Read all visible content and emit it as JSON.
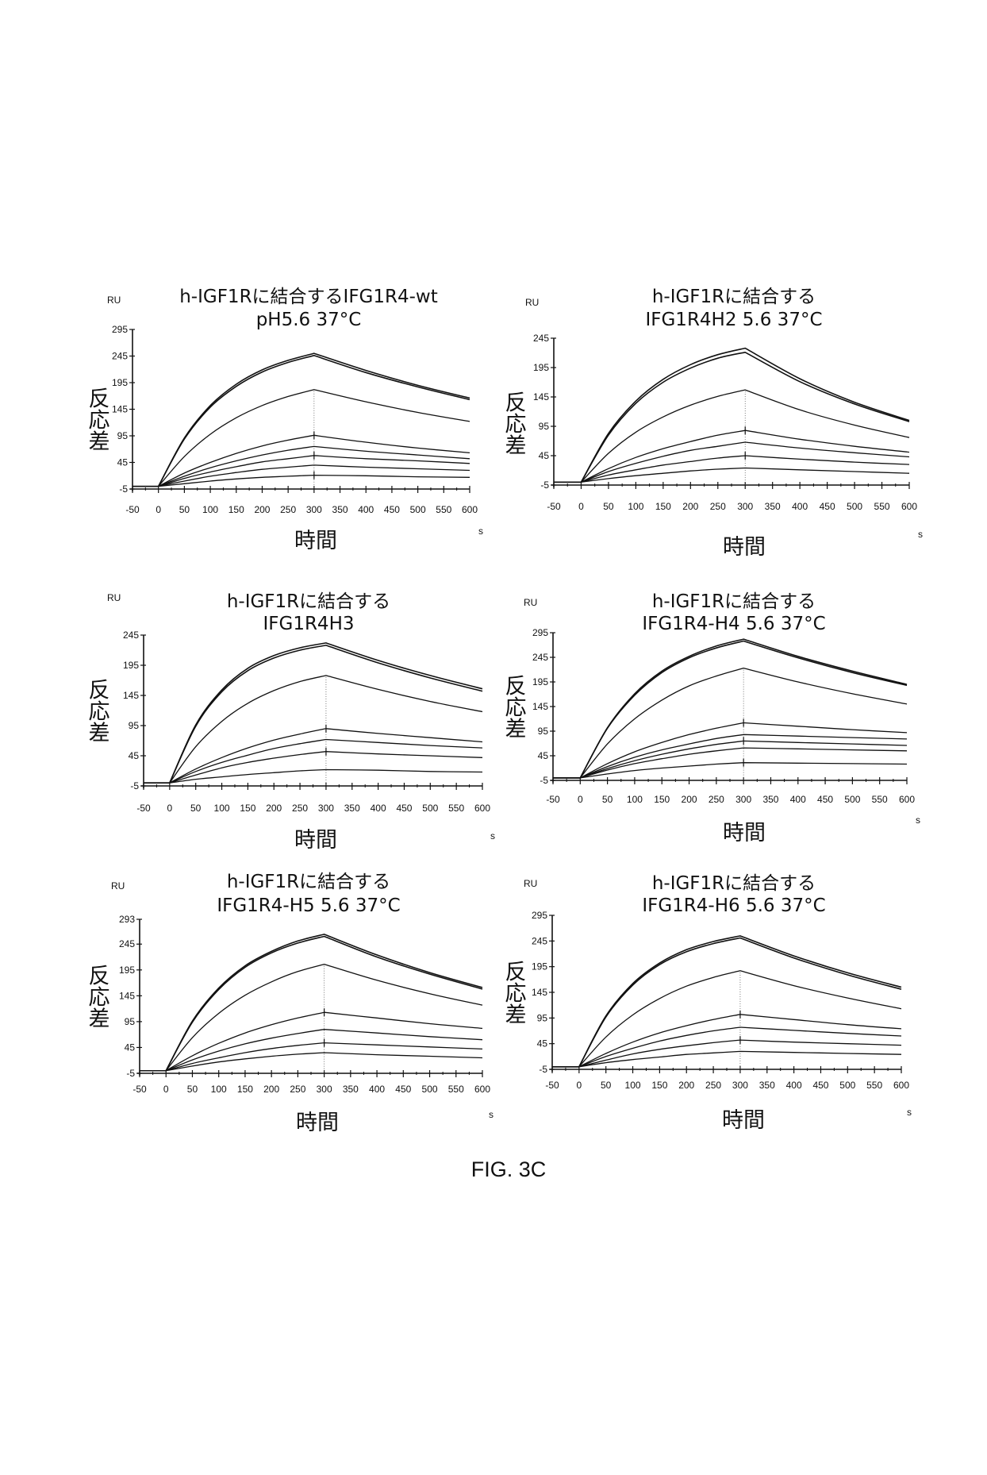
{
  "figure_label": "FIG. 3C",
  "chart_data": [
    {
      "type": "line",
      "title": [
        "h-IGF1Rに結合するIFG1R4-wt",
        "pH5.6  37°C"
      ],
      "unit_label": "RU",
      "ylabel": "反応差",
      "xlabel": "時間",
      "x_unit": "s",
      "xlim": [
        -50,
        600
      ],
      "ylim": [
        -5,
        295
      ],
      "xticks": [
        "-50",
        "0",
        "50",
        "100",
        "150",
        "200",
        "250",
        "300",
        "350",
        "400",
        "450",
        "500",
        "550",
        "600"
      ],
      "yticks": [
        "-5",
        "45",
        "95",
        "145",
        "195",
        "245",
        "295"
      ],
      "x": [
        -50,
        0,
        50,
        100,
        150,
        200,
        250,
        300,
        400,
        500,
        600
      ],
      "series": [
        {
          "values": [
            0,
            0,
            91,
            152,
            192,
            219,
            237,
            250,
            218,
            190,
            166
          ]
        },
        {
          "values": [
            0,
            0,
            89,
            149,
            188,
            215,
            233,
            246,
            214,
            187,
            163
          ]
        },
        {
          "values": [
            0,
            0,
            56,
            98,
            129,
            152,
            169,
            182,
            159,
            139,
            122
          ]
        },
        {
          "values": [
            0,
            0,
            25,
            45,
            62,
            76,
            87,
            96,
            83,
            72,
            63
          ]
        },
        {
          "values": [
            0,
            0,
            19,
            35,
            48,
            59,
            68,
            75,
            66,
            59,
            52
          ]
        },
        {
          "values": [
            0,
            0,
            15,
            27,
            37,
            46,
            52,
            58,
            52,
            48,
            43
          ]
        },
        {
          "values": [
            0,
            0,
            10,
            19,
            26,
            32,
            36,
            40,
            36,
            33,
            30
          ]
        },
        {
          "values": [
            0,
            0,
            5,
            10,
            14,
            17,
            19,
            21,
            20,
            18,
            17
          ]
        }
      ]
    },
    {
      "type": "line",
      "title": [
        "h-IGF1Rに結合する",
        "IFG1R4H2  5.6  37°C"
      ],
      "unit_label": "RU",
      "ylabel": "反応差",
      "xlabel": "時間",
      "x_unit": "s",
      "xlim": [
        -50,
        600
      ],
      "ylim": [
        -5,
        245
      ],
      "xticks": [
        "-50",
        "0",
        "50",
        "100",
        "150",
        "200",
        "250",
        "300",
        "350",
        "400",
        "450",
        "500",
        "550",
        "600"
      ],
      "yticks": [
        "-5",
        "45",
        "95",
        "145",
        "195",
        "245"
      ],
      "x": [
        -50,
        0,
        50,
        100,
        150,
        200,
        250,
        300,
        400,
        500,
        600
      ],
      "series": [
        {
          "values": [
            0,
            0,
            83,
            138,
            175,
            200,
            217,
            228,
            176,
            136,
            105
          ]
        },
        {
          "values": [
            0,
            0,
            80,
            134,
            170,
            194,
            211,
            221,
            171,
            133,
            103
          ]
        },
        {
          "values": [
            0,
            0,
            49,
            85,
            111,
            131,
            146,
            157,
            123,
            97,
            76
          ]
        },
        {
          "values": [
            0,
            0,
            23,
            42,
            57,
            69,
            80,
            88,
            73,
            61,
            51
          ]
        },
        {
          "values": [
            0,
            0,
            18,
            32,
            44,
            54,
            61,
            68,
            58,
            50,
            43
          ]
        },
        {
          "values": [
            0,
            0,
            12,
            21,
            29,
            35,
            41,
            45,
            39,
            34,
            30
          ]
        },
        {
          "values": [
            0,
            0,
            6,
            11,
            15,
            19,
            22,
            24,
            21,
            18,
            15
          ]
        }
      ]
    },
    {
      "type": "line",
      "title": [
        "h-IGF1Rに結合する",
        "IFG1R4H3"
      ],
      "unit_label": "RU",
      "ylabel": "反応差",
      "xlabel": "時間",
      "x_unit": "s",
      "xlim": [
        -50,
        600
      ],
      "ylim": [
        -5,
        245
      ],
      "xticks": [
        "-50",
        "0",
        "50",
        "100",
        "150",
        "200",
        "250",
        "300",
        "350",
        "400",
        "450",
        "500",
        "550",
        "600"
      ],
      "yticks": [
        "-5",
        "45",
        "95",
        "145",
        "195",
        "245"
      ],
      "x": [
        -50,
        0,
        50,
        100,
        150,
        200,
        250,
        300,
        400,
        500,
        600
      ],
      "series": [
        {
          "values": [
            0,
            0,
            96,
            154,
            190,
            211,
            224,
            232,
            203,
            178,
            156
          ]
        },
        {
          "values": [
            0,
            0,
            94,
            151,
            186,
            207,
            220,
            228,
            199,
            174,
            152
          ]
        },
        {
          "values": [
            0,
            0,
            60,
            102,
            132,
            153,
            168,
            178,
            155,
            135,
            118
          ]
        },
        {
          "values": [
            0,
            0,
            23,
            42,
            58,
            71,
            81,
            90,
            82,
            75,
            68
          ]
        },
        {
          "values": [
            0,
            0,
            19,
            34,
            46,
            57,
            65,
            72,
            67,
            62,
            58
          ]
        },
        {
          "values": [
            0,
            0,
            13,
            25,
            34,
            41,
            47,
            52,
            48,
            45,
            42
          ]
        },
        {
          "values": [
            0,
            0,
            6,
            10,
            14,
            17,
            20,
            22,
            21,
            19,
            18
          ]
        }
      ]
    },
    {
      "type": "line",
      "title": [
        "h-IGF1Rに結合する",
        "IFG1R4-H4  5.6  37°C"
      ],
      "unit_label": "RU",
      "ylabel": "反応差",
      "xlabel": "時間",
      "x_unit": "s",
      "xlim": [
        -50,
        600
      ],
      "ylim": [
        -5,
        295
      ],
      "xticks": [
        "-50",
        "0",
        "50",
        "100",
        "150",
        "200",
        "250",
        "300",
        "350",
        "400",
        "450",
        "500",
        "550",
        "600"
      ],
      "yticks": [
        "-5",
        "45",
        "95",
        "145",
        "195",
        "245",
        "295"
      ],
      "x": [
        -50,
        0,
        50,
        100,
        150,
        200,
        250,
        300,
        400,
        500,
        600
      ],
      "series": [
        {
          "values": [
            0,
            0,
            102,
            171,
            217,
            247,
            268,
            282,
            247,
            217,
            190
          ]
        },
        {
          "values": [
            0,
            0,
            101,
            168,
            214,
            244,
            264,
            278,
            244,
            214,
            188
          ]
        },
        {
          "values": [
            0,
            0,
            69,
            120,
            158,
            187,
            207,
            223,
            195,
            171,
            150
          ]
        },
        {
          "values": [
            0,
            0,
            29,
            53,
            72,
            88,
            101,
            112,
            105,
            98,
            92
          ]
        },
        {
          "values": [
            0,
            0,
            23,
            42,
            57,
            69,
            80,
            88,
            85,
            82,
            79
          ]
        },
        {
          "values": [
            0,
            0,
            19,
            35,
            48,
            59,
            68,
            75,
            72,
            69,
            66
          ]
        },
        {
          "values": [
            0,
            0,
            16,
            29,
            39,
            48,
            55,
            61,
            59,
            57,
            55
          ]
        },
        {
          "values": [
            0,
            0,
            8,
            15,
            20,
            24,
            28,
            31,
            30,
            29,
            28
          ]
        }
      ]
    },
    {
      "type": "line",
      "title": [
        "h-IGF1Rに結合する",
        "IFG1R4-H5  5.6  37°C"
      ],
      "unit_label": "RU",
      "ylabel": "反応差",
      "xlabel": "時間",
      "x_unit": "s",
      "xlim": [
        -50,
        600
      ],
      "ylim": [
        -5,
        293
      ],
      "xticks": [
        "-50",
        "0",
        "50",
        "100",
        "150",
        "200",
        "250",
        "300",
        "350",
        "400",
        "450",
        "500",
        "550",
        "600"
      ],
      "yticks": [
        "-5",
        "45",
        "95",
        "145",
        "195",
        "245",
        "293"
      ],
      "x": [
        -50,
        0,
        50,
        100,
        150,
        200,
        250,
        300,
        400,
        500,
        600
      ],
      "series": [
        {
          "values": [
            0,
            0,
            96,
            160,
            203,
            231,
            251,
            264,
            224,
            190,
            161
          ]
        },
        {
          "values": [
            0,
            0,
            94,
            157,
            200,
            228,
            247,
            260,
            220,
            187,
            158
          ]
        },
        {
          "values": [
            0,
            0,
            64,
            111,
            146,
            172,
            192,
            206,
            175,
            149,
            127
          ]
        },
        {
          "values": [
            0,
            0,
            29,
            53,
            73,
            89,
            102,
            113,
            102,
            91,
            82
          ]
        },
        {
          "values": [
            0,
            0,
            21,
            38,
            52,
            63,
            72,
            80,
            73,
            66,
            60
          ]
        },
        {
          "values": [
            0,
            0,
            14,
            25,
            35,
            43,
            49,
            54,
            50,
            46,
            42
          ]
        },
        {
          "values": [
            0,
            0,
            9,
            17,
            23,
            28,
            32,
            35,
            31,
            28,
            25
          ]
        }
      ]
    },
    {
      "type": "line",
      "title": [
        "h-IGF1Rに結合する",
        "IFG1R4-H6  5.6  37°C"
      ],
      "unit_label": "RU",
      "ylabel": "反応差",
      "xlabel": "時間",
      "x_unit": "s",
      "xlim": [
        -50,
        600
      ],
      "ylim": [
        -5,
        295
      ],
      "xticks": [
        "-50",
        "0",
        "50",
        "100",
        "150",
        "200",
        "250",
        "300",
        "350",
        "400",
        "450",
        "500",
        "550",
        "600"
      ],
      "yticks": [
        "-5",
        "45",
        "95",
        "145",
        "195",
        "245",
        "295"
      ],
      "x": [
        -50,
        0,
        50,
        100,
        150,
        200,
        250,
        300,
        400,
        500,
        600
      ],
      "series": [
        {
          "values": [
            0,
            0,
            99,
            162,
            202,
            228,
            244,
            255,
            216,
            183,
            155
          ]
        },
        {
          "values": [
            0,
            0,
            97,
            159,
            199,
            224,
            240,
            251,
            212,
            179,
            151
          ]
        },
        {
          "values": [
            0,
            0,
            58,
            101,
            133,
            157,
            174,
            187,
            158,
            134,
            113
          ]
        },
        {
          "values": [
            0,
            0,
            26,
            48,
            66,
            80,
            92,
            102,
            92,
            82,
            74
          ]
        },
        {
          "values": [
            0,
            0,
            20,
            36,
            50,
            61,
            70,
            77,
            71,
            65,
            60
          ]
        },
        {
          "values": [
            0,
            0,
            13,
            25,
            34,
            41,
            47,
            52,
            48,
            45,
            42
          ]
        },
        {
          "values": [
            0,
            0,
            8,
            14,
            19,
            24,
            27,
            30,
            28,
            26,
            24
          ]
        }
      ]
    }
  ]
}
